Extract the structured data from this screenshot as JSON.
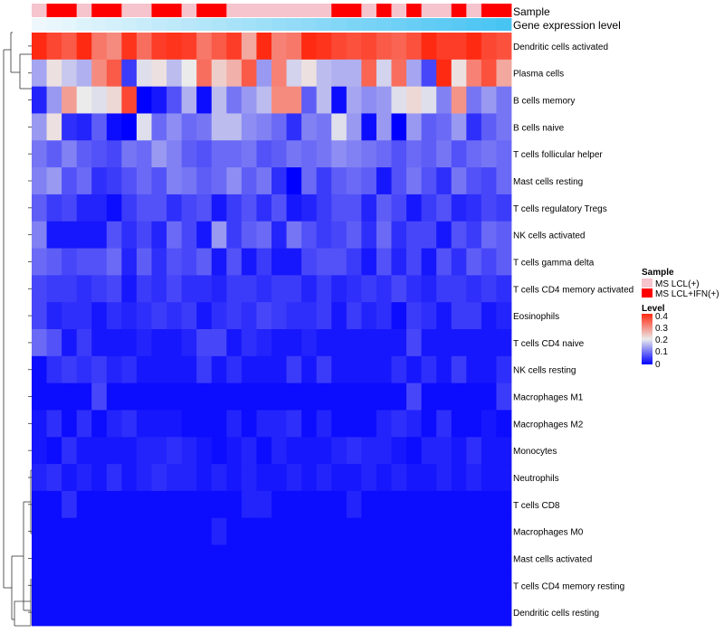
{
  "chart_data": {
    "type": "heatmap",
    "title": "",
    "annotation_tracks": [
      "Sample",
      "Gene expression level"
    ],
    "sample_groups": [
      "MS LCL(+)",
      "MS LCL+IFN(+)",
      "MS LCL+IFN(+)",
      "MS LCL(+)",
      "MS LCL+IFN(+)",
      "MS LCL+IFN(+)",
      "MS LCL(+)",
      "MS LCL(+)",
      "MS LCL+IFN(+)",
      "MS LCL+IFN(+)",
      "MS LCL(+)",
      "MS LCL+IFN(+)",
      "MS LCL+IFN(+)",
      "MS LCL(+)",
      "MS LCL(+)",
      "MS LCL(+)",
      "MS LCL(+)",
      "MS LCL(+)",
      "MS LCL(+)",
      "MS LCL(+)",
      "MS LCL+IFN(+)",
      "MS LCL+IFN(+)",
      "MS LCL(+)",
      "MS LCL+IFN(+)",
      "MS LCL(+)",
      "MS LCL+IFN(+)",
      "MS LCL(+)",
      "MS LCL(+)",
      "MS LCL+IFN(+)",
      "MS LCL(+)",
      "MS LCL+IFN(+)",
      "MS LCL+IFN(+)"
    ],
    "expression_level": [
      0.0,
      0.03,
      0.06,
      0.1,
      0.13,
      0.16,
      0.19,
      0.23,
      0.26,
      0.29,
      0.32,
      0.35,
      0.39,
      0.42,
      0.45,
      0.48,
      0.52,
      0.55,
      0.58,
      0.61,
      0.65,
      0.68,
      0.71,
      0.74,
      0.77,
      0.81,
      0.84,
      0.87,
      0.9,
      0.94,
      0.97,
      1.0
    ],
    "rows": [
      "Dendritic cells activated",
      "Plasma cells",
      "B cells memory",
      "B cells naive",
      "T cells follicular helper",
      "Mast cells resting",
      "T cells regulatory  Tregs",
      "NK cells activated",
      "T cells gamma delta",
      "T cells CD4 memory activated",
      "Eosinophils",
      "T cells CD4 naive",
      "NK cells resting",
      "Macrophages M1",
      "Macrophages M2",
      "Monocytes",
      "Neutrophils",
      "T cells CD8",
      "Macrophages M0",
      "Mast cells activated",
      "T cells CD4 memory resting",
      "Dendritic cells resting"
    ],
    "values": [
      [
        0.4,
        0.37,
        0.35,
        0.4,
        0.32,
        0.3,
        0.39,
        0.33,
        0.38,
        0.39,
        0.38,
        0.32,
        0.35,
        0.38,
        0.27,
        0.4,
        0.31,
        0.32,
        0.4,
        0.39,
        0.37,
        0.36,
        0.37,
        0.35,
        0.34,
        0.36,
        0.4,
        0.38,
        0.38,
        0.4,
        0.37,
        0.36
      ],
      [
        0.14,
        0.21,
        0.17,
        0.15,
        0.3,
        0.35,
        0.05,
        0.19,
        0.21,
        0.16,
        0.2,
        0.33,
        0.23,
        0.26,
        0.35,
        0.13,
        0.31,
        0.18,
        0.21,
        0.16,
        0.15,
        0.15,
        0.34,
        0.18,
        0.33,
        0.14,
        0.06,
        0.4,
        0.21,
        0.31,
        0.36,
        0.27
      ],
      [
        0.03,
        0.13,
        0.28,
        0.2,
        0.19,
        0.22,
        0.37,
        0.0,
        0.02,
        0.07,
        0.15,
        0.01,
        0.16,
        0.1,
        0.13,
        0.16,
        0.3,
        0.3,
        0.08,
        0.16,
        0.01,
        0.14,
        0.12,
        0.13,
        0.19,
        0.22,
        0.19,
        0.11,
        0.29,
        0.1,
        0.13,
        0.1
      ],
      [
        0.13,
        0.21,
        0.04,
        0.03,
        0.08,
        0.01,
        0.0,
        0.19,
        0.09,
        0.12,
        0.09,
        0.1,
        0.16,
        0.16,
        0.12,
        0.11,
        0.09,
        0.04,
        0.11,
        0.1,
        0.19,
        0.13,
        0.01,
        0.13,
        0.0,
        0.13,
        0.08,
        0.09,
        0.13,
        0.04,
        0.08,
        0.1
      ],
      [
        0.1,
        0.08,
        0.11,
        0.08,
        0.07,
        0.06,
        0.1,
        0.09,
        0.13,
        0.11,
        0.08,
        0.07,
        0.09,
        0.09,
        0.1,
        0.07,
        0.08,
        0.1,
        0.09,
        0.1,
        0.12,
        0.11,
        0.1,
        0.09,
        0.07,
        0.09,
        0.08,
        0.1,
        0.07,
        0.09,
        0.1,
        0.09
      ],
      [
        0.11,
        0.13,
        0.07,
        0.09,
        0.04,
        0.05,
        0.07,
        0.09,
        0.07,
        0.11,
        0.1,
        0.08,
        0.09,
        0.12,
        0.08,
        0.1,
        0.04,
        0.0,
        0.09,
        0.05,
        0.08,
        0.09,
        0.08,
        0.02,
        0.07,
        0.1,
        0.07,
        0.04,
        0.1,
        0.07,
        0.06,
        0.09
      ],
      [
        0.08,
        0.05,
        0.06,
        0.03,
        0.03,
        0.01,
        0.05,
        0.07,
        0.07,
        0.04,
        0.06,
        0.07,
        0.02,
        0.05,
        0.07,
        0.04,
        0.07,
        0.02,
        0.03,
        0.05,
        0.07,
        0.07,
        0.03,
        0.08,
        0.06,
        0.02,
        0.05,
        0.07,
        0.03,
        0.04,
        0.06,
        0.05
      ],
      [
        0.11,
        0.02,
        0.02,
        0.02,
        0.02,
        0.07,
        0.04,
        0.06,
        0.03,
        0.09,
        0.06,
        0.02,
        0.13,
        0.05,
        0.08,
        0.09,
        0.03,
        0.1,
        0.07,
        0.05,
        0.06,
        0.08,
        0.04,
        0.09,
        0.04,
        0.06,
        0.06,
        0.02,
        0.07,
        0.05,
        0.09,
        0.08
      ],
      [
        0.09,
        0.08,
        0.06,
        0.07,
        0.07,
        0.09,
        0.03,
        0.08,
        0.04,
        0.07,
        0.06,
        0.08,
        0.02,
        0.07,
        0.02,
        0.05,
        0.02,
        0.02,
        0.06,
        0.07,
        0.07,
        0.05,
        0.02,
        0.07,
        0.03,
        0.06,
        0.02,
        0.07,
        0.04,
        0.08,
        0.06,
        0.08
      ],
      [
        0.06,
        0.05,
        0.05,
        0.04,
        0.05,
        0.06,
        0.02,
        0.05,
        0.04,
        0.06,
        0.04,
        0.04,
        0.03,
        0.05,
        0.05,
        0.04,
        0.05,
        0.05,
        0.03,
        0.05,
        0.03,
        0.04,
        0.05,
        0.04,
        0.06,
        0.04,
        0.03,
        0.05,
        0.05,
        0.04,
        0.05,
        0.04
      ],
      [
        0.06,
        0.03,
        0.04,
        0.04,
        0.02,
        0.04,
        0.03,
        0.04,
        0.05,
        0.04,
        0.05,
        0.02,
        0.04,
        0.05,
        0.04,
        0.06,
        0.05,
        0.04,
        0.04,
        0.05,
        0.02,
        0.05,
        0.03,
        0.04,
        0.01,
        0.05,
        0.04,
        0.02,
        0.05,
        0.05,
        0.02,
        0.03
      ],
      [
        0.09,
        0.07,
        0.02,
        0.05,
        0.02,
        0.02,
        0.02,
        0.03,
        0.02,
        0.02,
        0.03,
        0.06,
        0.06,
        0.02,
        0.04,
        0.03,
        0.02,
        0.02,
        0.03,
        0.02,
        0.02,
        0.02,
        0.02,
        0.02,
        0.02,
        0.06,
        0.02,
        0.02,
        0.02,
        0.02,
        0.02,
        0.02
      ],
      [
        0.01,
        0.04,
        0.05,
        0.04,
        0.05,
        0.03,
        0.04,
        0.02,
        0.02,
        0.02,
        0.02,
        0.05,
        0.02,
        0.04,
        0.02,
        0.02,
        0.02,
        0.05,
        0.02,
        0.05,
        0.02,
        0.02,
        0.02,
        0.02,
        0.04,
        0.02,
        0.04,
        0.02,
        0.05,
        0.02,
        0.02,
        0.04
      ],
      [
        0.01,
        0.01,
        0.01,
        0.01,
        0.06,
        0.01,
        0.01,
        0.01,
        0.01,
        0.01,
        0.01,
        0.01,
        0.01,
        0.01,
        0.01,
        0.01,
        0.01,
        0.01,
        0.01,
        0.01,
        0.01,
        0.01,
        0.01,
        0.01,
        0.01,
        0.06,
        0.01,
        0.01,
        0.01,
        0.01,
        0.01,
        0.05
      ],
      [
        0.02,
        0.04,
        0.01,
        0.04,
        0.01,
        0.03,
        0.04,
        0.02,
        0.02,
        0.02,
        0.01,
        0.01,
        0.01,
        0.03,
        0.01,
        0.03,
        0.03,
        0.04,
        0.01,
        0.03,
        0.01,
        0.01,
        0.01,
        0.03,
        0.04,
        0.03,
        0.01,
        0.04,
        0.01,
        0.01,
        0.02,
        0.01
      ],
      [
        0.02,
        0.01,
        0.04,
        0.02,
        0.02,
        0.02,
        0.02,
        0.03,
        0.03,
        0.04,
        0.03,
        0.02,
        0.01,
        0.02,
        0.03,
        0.01,
        0.03,
        0.02,
        0.02,
        0.02,
        0.03,
        0.04,
        0.03,
        0.03,
        0.02,
        0.01,
        0.03,
        0.03,
        0.02,
        0.04,
        0.02,
        0.02
      ],
      [
        0.03,
        0.04,
        0.02,
        0.03,
        0.02,
        0.04,
        0.02,
        0.03,
        0.04,
        0.03,
        0.03,
        0.02,
        0.03,
        0.02,
        0.03,
        0.02,
        0.02,
        0.03,
        0.02,
        0.03,
        0.02,
        0.02,
        0.03,
        0.02,
        0.03,
        0.02,
        0.02,
        0.03,
        0.02,
        0.03,
        0.02,
        0.02
      ],
      [
        0.01,
        0.01,
        0.04,
        0.01,
        0.01,
        0.01,
        0.01,
        0.01,
        0.01,
        0.01,
        0.01,
        0.01,
        0.01,
        0.01,
        0.03,
        0.03,
        0.01,
        0.01,
        0.01,
        0.01,
        0.01,
        0.03,
        0.01,
        0.01,
        0.01,
        0.01,
        0.01,
        0.01,
        0.01,
        0.01,
        0.01,
        0.01
      ],
      [
        0.01,
        0.01,
        0.01,
        0.01,
        0.01,
        0.01,
        0.01,
        0.01,
        0.01,
        0.01,
        0.01,
        0.01,
        0.03,
        0.01,
        0.01,
        0.01,
        0.01,
        0.01,
        0.01,
        0.01,
        0.01,
        0.01,
        0.01,
        0.01,
        0.01,
        0.01,
        0.01,
        0.01,
        0.01,
        0.01,
        0.01,
        0.01
      ],
      [
        0.01,
        0.01,
        0.01,
        0.01,
        0.01,
        0.01,
        0.01,
        0.01,
        0.01,
        0.01,
        0.01,
        0.01,
        0.01,
        0.01,
        0.01,
        0.01,
        0.01,
        0.01,
        0.01,
        0.01,
        0.01,
        0.01,
        0.01,
        0.01,
        0.01,
        0.01,
        0.01,
        0.01,
        0.01,
        0.01,
        0.01,
        0.01
      ],
      [
        0.01,
        0.01,
        0.01,
        0.01,
        0.01,
        0.01,
        0.01,
        0.01,
        0.01,
        0.01,
        0.01,
        0.01,
        0.01,
        0.01,
        0.01,
        0.01,
        0.01,
        0.01,
        0.01,
        0.01,
        0.01,
        0.01,
        0.01,
        0.01,
        0.01,
        0.01,
        0.01,
        0.01,
        0.01,
        0.01,
        0.01,
        0.01
      ],
      [
        0.01,
        0.01,
        0.01,
        0.01,
        0.01,
        0.01,
        0.01,
        0.01,
        0.01,
        0.01,
        0.01,
        0.01,
        0.01,
        0.01,
        0.01,
        0.01,
        0.01,
        0.01,
        0.01,
        0.01,
        0.01,
        0.01,
        0.01,
        0.01,
        0.01,
        0.01,
        0.01,
        0.01,
        0.01,
        0.01,
        0.01,
        0.01
      ]
    ],
    "color_scale": {
      "domain": [
        0,
        0.2,
        0.4
      ],
      "colors": [
        "#0000ff",
        "#ebebeb",
        "#ff2a12"
      ]
    },
    "expression_scale_colors": [
      "#eef8fc",
      "#48c4f3"
    ],
    "legend": {
      "sample_title": "Sample",
      "sample_entries": [
        {
          "label": "MS LCL(+)",
          "color": "#f6c4cd"
        },
        {
          "label": "MS LCL+IFN(+)",
          "color": "#ff0000"
        }
      ],
      "level_title": "Level",
      "level_ticks": [
        "0.4",
        "0.3",
        "0.2",
        "0.1",
        "0"
      ],
      "placement": "right"
    }
  }
}
